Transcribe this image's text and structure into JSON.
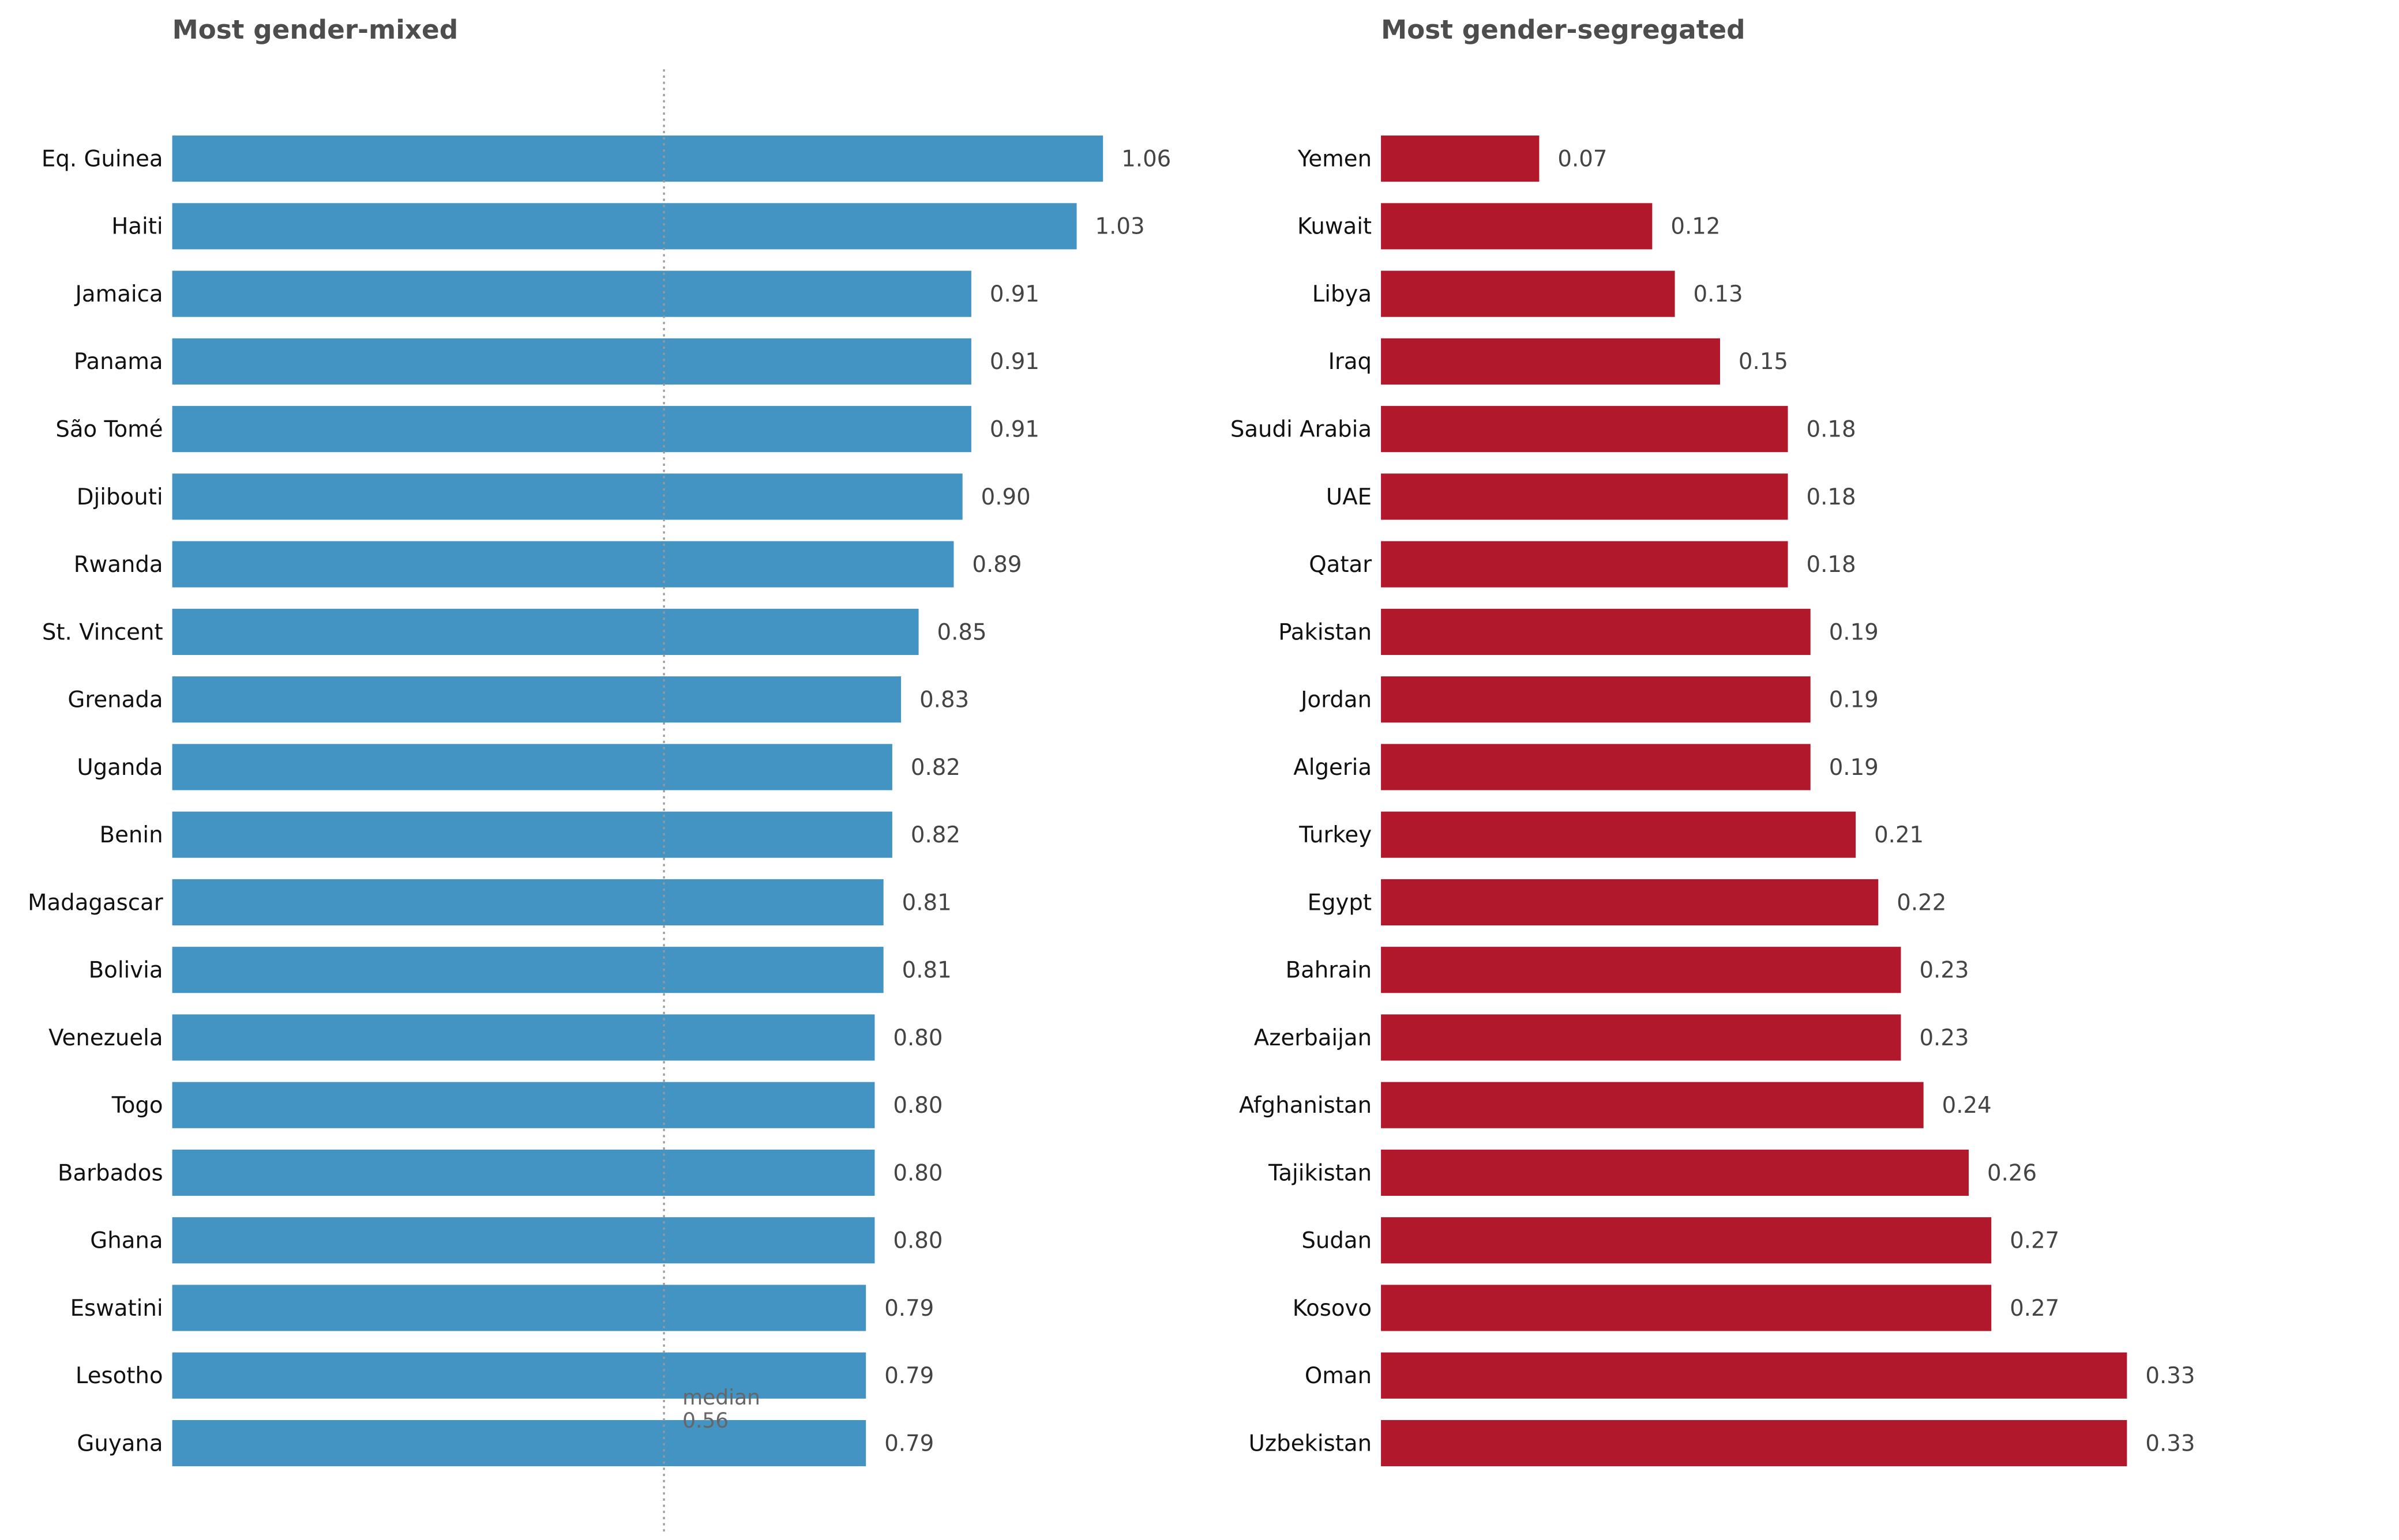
{
  "chart_data": [
    {
      "type": "bar",
      "orientation": "horizontal",
      "title": "Most gender-mixed",
      "color": "#4393c3",
      "categories": [
        "Eq. Guinea",
        "Haiti",
        "Jamaica",
        "Panama",
        "São Tomé",
        "Djibouti",
        "Rwanda",
        "St. Vincent",
        "Grenada",
        "Uganda",
        "Benin",
        "Madagascar",
        "Bolivia",
        "Venezuela",
        "Togo",
        "Barbados",
        "Ghana",
        "Eswatini",
        "Lesotho",
        "Guyana"
      ],
      "values": [
        1.06,
        1.03,
        0.91,
        0.91,
        0.91,
        0.9,
        0.89,
        0.85,
        0.83,
        0.82,
        0.82,
        0.81,
        0.81,
        0.8,
        0.8,
        0.8,
        0.8,
        0.79,
        0.79,
        0.79
      ],
      "value_labels": [
        "1.06",
        "1.03",
        "0.91",
        "0.91",
        "0.91",
        "0.90",
        "0.89",
        "0.85",
        "0.83",
        "0.82",
        "0.82",
        "0.81",
        "0.81",
        "0.80",
        "0.80",
        "0.80",
        "0.80",
        "0.79",
        "0.79",
        "0.79"
      ],
      "reference_line": {
        "value": 0.56,
        "label": "median",
        "value_label": "0.56",
        "style": "dotted"
      },
      "xlim": [
        0,
        1.1
      ],
      "grid": false
    },
    {
      "type": "bar",
      "orientation": "horizontal",
      "title": "Most gender-segregated",
      "color": "#b2182b",
      "categories": [
        "Yemen",
        "Kuwait",
        "Libya",
        "Iraq",
        "Saudi Arabia",
        "UAE",
        "Qatar",
        "Pakistan",
        "Jordan",
        "Algeria",
        "Turkey",
        "Egypt",
        "Bahrain",
        "Azerbaijan",
        "Afghanistan",
        "Tajikistan",
        "Sudan",
        "Kosovo",
        "Oman",
        "Uzbekistan"
      ],
      "values": [
        0.07,
        0.12,
        0.13,
        0.15,
        0.18,
        0.18,
        0.18,
        0.19,
        0.19,
        0.19,
        0.21,
        0.22,
        0.23,
        0.23,
        0.24,
        0.26,
        0.27,
        0.27,
        0.33,
        0.33
      ],
      "value_labels": [
        "0.07",
        "0.12",
        "0.13",
        "0.15",
        "0.18",
        "0.18",
        "0.18",
        "0.19",
        "0.19",
        "0.19",
        "0.21",
        "0.22",
        "0.23",
        "0.23",
        "0.24",
        "0.26",
        "0.27",
        "0.27",
        "0.33",
        "0.33"
      ],
      "xlim": [
        0,
        0.45
      ],
      "grid": false
    }
  ]
}
